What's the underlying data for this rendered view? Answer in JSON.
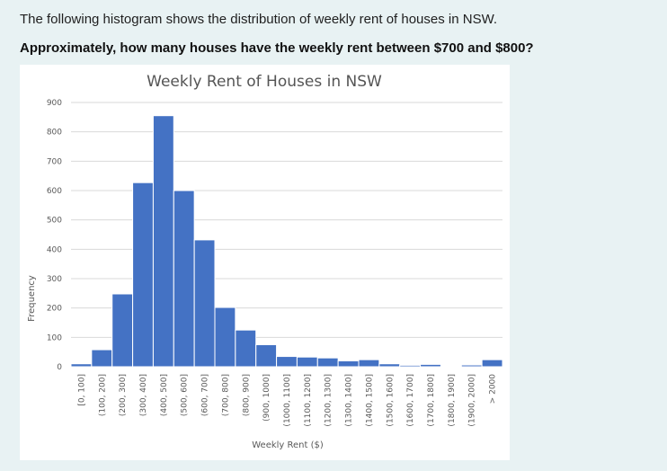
{
  "question": {
    "intro": "The following histogram shows the distribution of weekly rent of houses in NSW.",
    "prompt": "Approximately, how many houses have the weekly rent between $700 and $800?"
  },
  "chart_data": {
    "type": "bar",
    "title": "Weekly Rent of Houses in NSW",
    "xlabel": "Weekly Rent ($)",
    "ylabel": "Frequency",
    "ylim": [
      0,
      900
    ],
    "yticks": [
      0,
      100,
      200,
      300,
      400,
      500,
      600,
      700,
      800,
      900
    ],
    "grid": true,
    "legend": "none",
    "bar_color": "#4472c4",
    "categories": [
      "[0, 100]",
      "(100, 200]",
      "(200, 300]",
      "(300, 400]",
      "(400, 500]",
      "(500, 600]",
      "(600, 700]",
      "(700, 800]",
      "(800, 900]",
      "(900, 1000]",
      "(1000, 1100]",
      "(1100, 1200]",
      "(1200, 1300]",
      "(1300, 1400]",
      "(1400, 1500]",
      "(1500, 1600]",
      "(1600, 1700]",
      "(1700, 1800]",
      "(1800, 1900]",
      "(1900, 2000]",
      "> 2000"
    ],
    "values": [
      10,
      58,
      248,
      627,
      855,
      600,
      432,
      202,
      125,
      75,
      35,
      33,
      30,
      20,
      24,
      10,
      5,
      8,
      2,
      6,
      24
    ]
  }
}
